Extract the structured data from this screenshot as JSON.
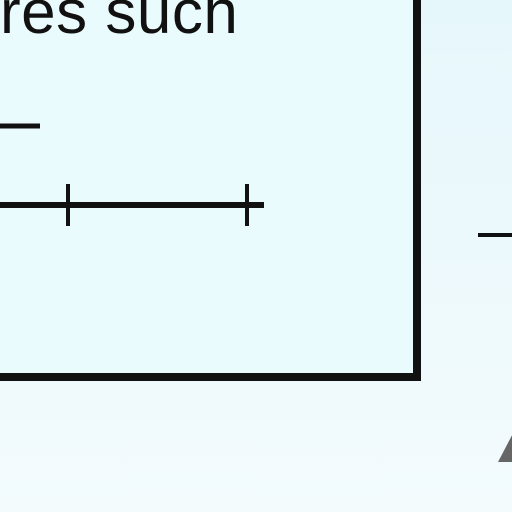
{
  "caption": {
    "text": "res such"
  },
  "colors": {
    "background": "#eafbfd",
    "ink": "#111111",
    "accent_gray": "#666666"
  }
}
